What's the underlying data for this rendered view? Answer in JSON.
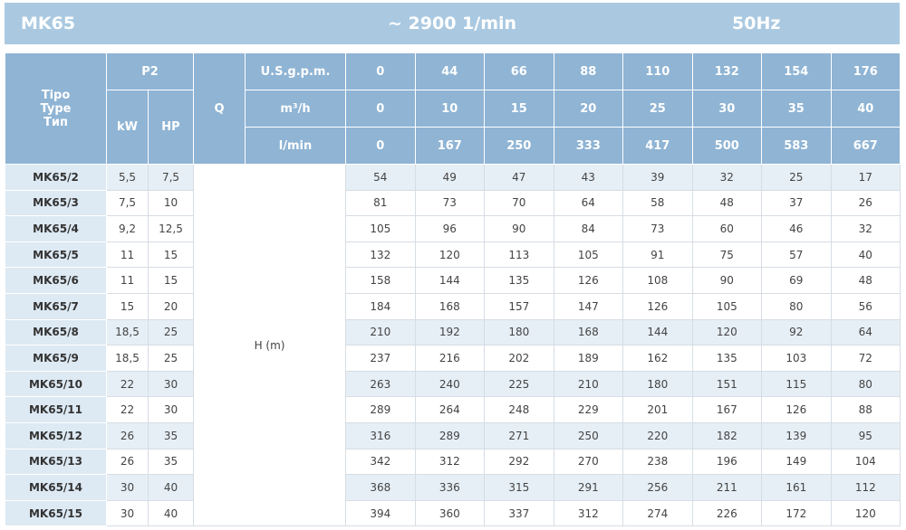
{
  "header": {
    "model": "MK65",
    "speed": "~ 2900 1/min",
    "frequency": "50Hz"
  },
  "table": {
    "type_label": [
      "Tipo",
      "Type",
      "Тип"
    ],
    "p2": "P2",
    "kw": "kW",
    "hp": "HP",
    "q": "Q",
    "flow_units": [
      {
        "unit": "U.S.g.p.m.",
        "values": [
          0,
          44,
          66,
          88,
          110,
          132,
          154,
          176
        ]
      },
      {
        "unit": "m³/h",
        "values": [
          0,
          10,
          15,
          20,
          25,
          30,
          35,
          40
        ]
      },
      {
        "unit": "l/min",
        "values": [
          0,
          167,
          250,
          333,
          417,
          500,
          583,
          667
        ]
      }
    ],
    "head_label": "H (m)",
    "rows": [
      {
        "type": "MK65/2",
        "kw": "5,5",
        "hp": "7,5",
        "head": [
          54,
          49,
          47,
          43,
          39,
          32,
          25,
          17
        ]
      },
      {
        "type": "MK65/3",
        "kw": "7,5",
        "hp": 10,
        "head": [
          81,
          73,
          70,
          64,
          58,
          48,
          37,
          26
        ]
      },
      {
        "type": "MK65/4",
        "kw": "9,2",
        "hp": "12,5",
        "head": [
          105,
          96,
          90,
          84,
          73,
          60,
          46,
          32
        ]
      },
      {
        "type": "MK65/5",
        "kw": 11,
        "hp": 15,
        "head": [
          132,
          120,
          113,
          105,
          91,
          75,
          57,
          40
        ]
      },
      {
        "type": "MK65/6",
        "kw": 11,
        "hp": 15,
        "head": [
          158,
          144,
          135,
          126,
          108,
          90,
          69,
          48
        ]
      },
      {
        "type": "MK65/7",
        "kw": 15,
        "hp": 20,
        "head": [
          184,
          168,
          157,
          147,
          126,
          105,
          80,
          56
        ]
      },
      {
        "type": "MK65/8",
        "kw": "18,5",
        "hp": 25,
        "head": [
          210,
          192,
          180,
          168,
          144,
          120,
          92,
          64
        ]
      },
      {
        "type": "MK65/9",
        "kw": "18,5",
        "hp": 25,
        "head": [
          237,
          216,
          202,
          189,
          162,
          135,
          103,
          72
        ]
      },
      {
        "type": "MK65/10",
        "kw": 22,
        "hp": 30,
        "head": [
          263,
          240,
          225,
          210,
          180,
          151,
          115,
          80
        ]
      },
      {
        "type": "MK65/11",
        "kw": 22,
        "hp": 30,
        "head": [
          289,
          264,
          248,
          229,
          201,
          167,
          126,
          88
        ]
      },
      {
        "type": "MK65/12",
        "kw": 26,
        "hp": 35,
        "head": [
          316,
          289,
          271,
          250,
          220,
          182,
          139,
          95
        ]
      },
      {
        "type": "MK65/13",
        "kw": 26,
        "hp": 35,
        "head": [
          342,
          312,
          292,
          270,
          238,
          196,
          149,
          104
        ]
      },
      {
        "type": "MK65/14",
        "kw": 30,
        "hp": 40,
        "head": [
          368,
          336,
          315,
          291,
          256,
          211,
          161,
          112
        ]
      },
      {
        "type": "MK65/15",
        "kw": 30,
        "hp": 40,
        "head": [
          394,
          360,
          337,
          312,
          274,
          226,
          172,
          120
        ]
      }
    ]
  }
}
